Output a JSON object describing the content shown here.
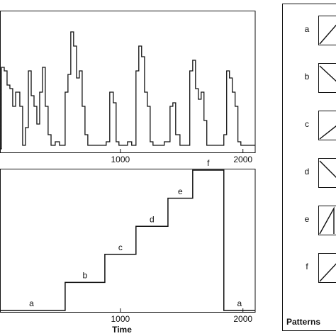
{
  "chart_data": [
    {
      "type": "line",
      "step": true,
      "color": "#111",
      "x": [
        0,
        29,
        52,
        75,
        98,
        121,
        145,
        179,
        202,
        225,
        249,
        272,
        295,
        318,
        341,
        364,
        387,
        410,
        434,
        468,
        503,
        549,
        572,
        595,
        618,
        642,
        665,
        688,
        711,
        734,
        884,
        913,
        942,
        965,
        988,
        1058,
        1092,
        1127,
        1150,
        1173,
        1197,
        1220,
        1243,
        1266,
        1358,
        1405,
        1428,
        1451,
        1486,
        1566,
        1590,
        1613,
        1636,
        1659,
        1682,
        1705,
        1844,
        1867,
        1890,
        1913,
        1936,
        1959,
        1983,
        2098
      ],
      "values": [
        5,
        120,
        115,
        95,
        90,
        65,
        85,
        65,
        10,
        35,
        115,
        80,
        65,
        40,
        85,
        120,
        65,
        25,
        10,
        15,
        10,
        85,
        110,
        170,
        150,
        105,
        115,
        65,
        25,
        10,
        15,
        85,
        70,
        15,
        10,
        15,
        10,
        115,
        150,
        135,
        85,
        65,
        15,
        10,
        15,
        65,
        70,
        25,
        10,
        115,
        130,
        90,
        75,
        85,
        45,
        10,
        25,
        115,
        105,
        85,
        65,
        15,
        10,
        10
      ],
      "xlim": [
        0,
        2100
      ],
      "ylim": [
        0,
        200
      ],
      "xticks": [
        1000,
        2000
      ]
    },
    {
      "type": "step-labels",
      "color": "#111",
      "x": [
        0,
        549,
        873,
        1127,
        1388,
        1590,
        1844
      ],
      "values": [
        1,
        2,
        3,
        4,
        5,
        6,
        1
      ],
      "value_labels": [
        "a",
        "b",
        "c",
        "d",
        "e",
        "f",
        "a"
      ],
      "xlim": [
        0,
        2100
      ],
      "ylim": [
        0.95,
        6.05
      ],
      "xticks": [
        1000,
        2000
      ],
      "xlabel": "Time"
    }
  ],
  "patterns": {
    "title": "Patterns",
    "labels": [
      "a",
      "b",
      "c",
      "d",
      "e",
      "f"
    ]
  }
}
